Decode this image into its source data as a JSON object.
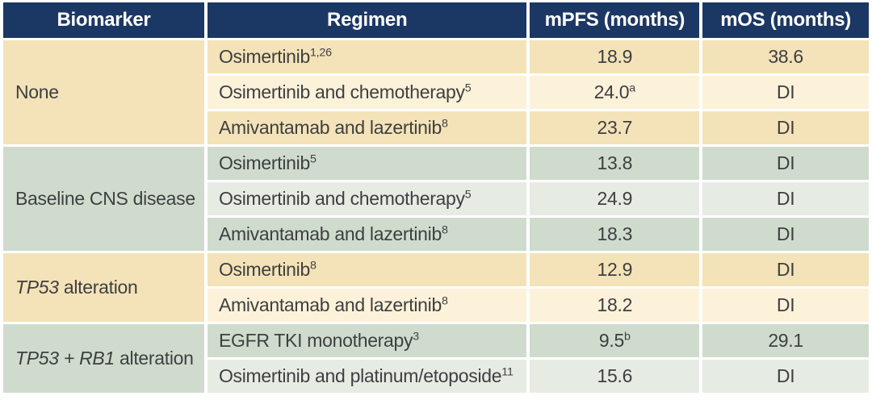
{
  "colors": {
    "header_bg": "#1b3764",
    "header_text": "#ffffff",
    "cream_dark": "#f4e3b8",
    "cream_light": "#fcf2da",
    "green_dark": "#cfdccd",
    "green_light": "#e6ece3",
    "body_text": "#3e3f41",
    "gap": "#ffffff"
  },
  "table": {
    "headers": [
      "Biomarker",
      "Regimen",
      "mPFS (months)",
      "mOS (months)"
    ],
    "groups": [
      {
        "tone": "cream",
        "biomarker": {
          "italic": "",
          "rest": "None"
        },
        "rows": [
          {
            "regimen": {
              "text": "Osimertinib",
              "sup": "1,26"
            },
            "mpfs": {
              "text": "18.9",
              "sup": ""
            },
            "mos": {
              "text": "38.6",
              "sup": ""
            }
          },
          {
            "regimen": {
              "text": "Osimertinib and chemotherapy",
              "sup": "5"
            },
            "mpfs": {
              "text": "24.0",
              "sup": "a"
            },
            "mos": {
              "text": "DI",
              "sup": ""
            }
          },
          {
            "regimen": {
              "text": "Amivantamab and lazertinib",
              "sup": "8"
            },
            "mpfs": {
              "text": "23.7",
              "sup": ""
            },
            "mos": {
              "text": "DI",
              "sup": ""
            }
          }
        ]
      },
      {
        "tone": "green",
        "biomarker": {
          "italic": "",
          "rest": "Baseline CNS disease"
        },
        "rows": [
          {
            "regimen": {
              "text": "Osimertinib",
              "sup": "5"
            },
            "mpfs": {
              "text": "13.8",
              "sup": ""
            },
            "mos": {
              "text": "DI",
              "sup": ""
            }
          },
          {
            "regimen": {
              "text": "Osimertinib and chemotherapy",
              "sup": "5"
            },
            "mpfs": {
              "text": "24.9",
              "sup": ""
            },
            "mos": {
              "text": "DI",
              "sup": ""
            }
          },
          {
            "regimen": {
              "text": "Amivantamab and lazertinib",
              "sup": "8"
            },
            "mpfs": {
              "text": "18.3",
              "sup": ""
            },
            "mos": {
              "text": "DI",
              "sup": ""
            }
          }
        ]
      },
      {
        "tone": "cream",
        "biomarker": {
          "italic": "TP53",
          "rest": " alteration"
        },
        "rows": [
          {
            "regimen": {
              "text": "Osimertinib",
              "sup": "8"
            },
            "mpfs": {
              "text": "12.9",
              "sup": ""
            },
            "mos": {
              "text": "DI",
              "sup": ""
            }
          },
          {
            "regimen": {
              "text": "Amivantamab and lazertinib",
              "sup": "8"
            },
            "mpfs": {
              "text": "18.2",
              "sup": ""
            },
            "mos": {
              "text": "DI",
              "sup": ""
            }
          }
        ]
      },
      {
        "tone": "green",
        "biomarker": {
          "italic": "TP53 + RB1",
          "rest": " alteration"
        },
        "rows": [
          {
            "regimen": {
              "text": "EGFR TKI monotherapy",
              "sup": "3"
            },
            "mpfs": {
              "text": "9.5",
              "sup": "b"
            },
            "mos": {
              "text": "29.1",
              "sup": ""
            }
          },
          {
            "regimen": {
              "text": "Osimertinib and platinum/etoposide",
              "sup": "11"
            },
            "mpfs": {
              "text": "15.6",
              "sup": ""
            },
            "mos": {
              "text": "DI",
              "sup": ""
            }
          }
        ]
      }
    ]
  }
}
